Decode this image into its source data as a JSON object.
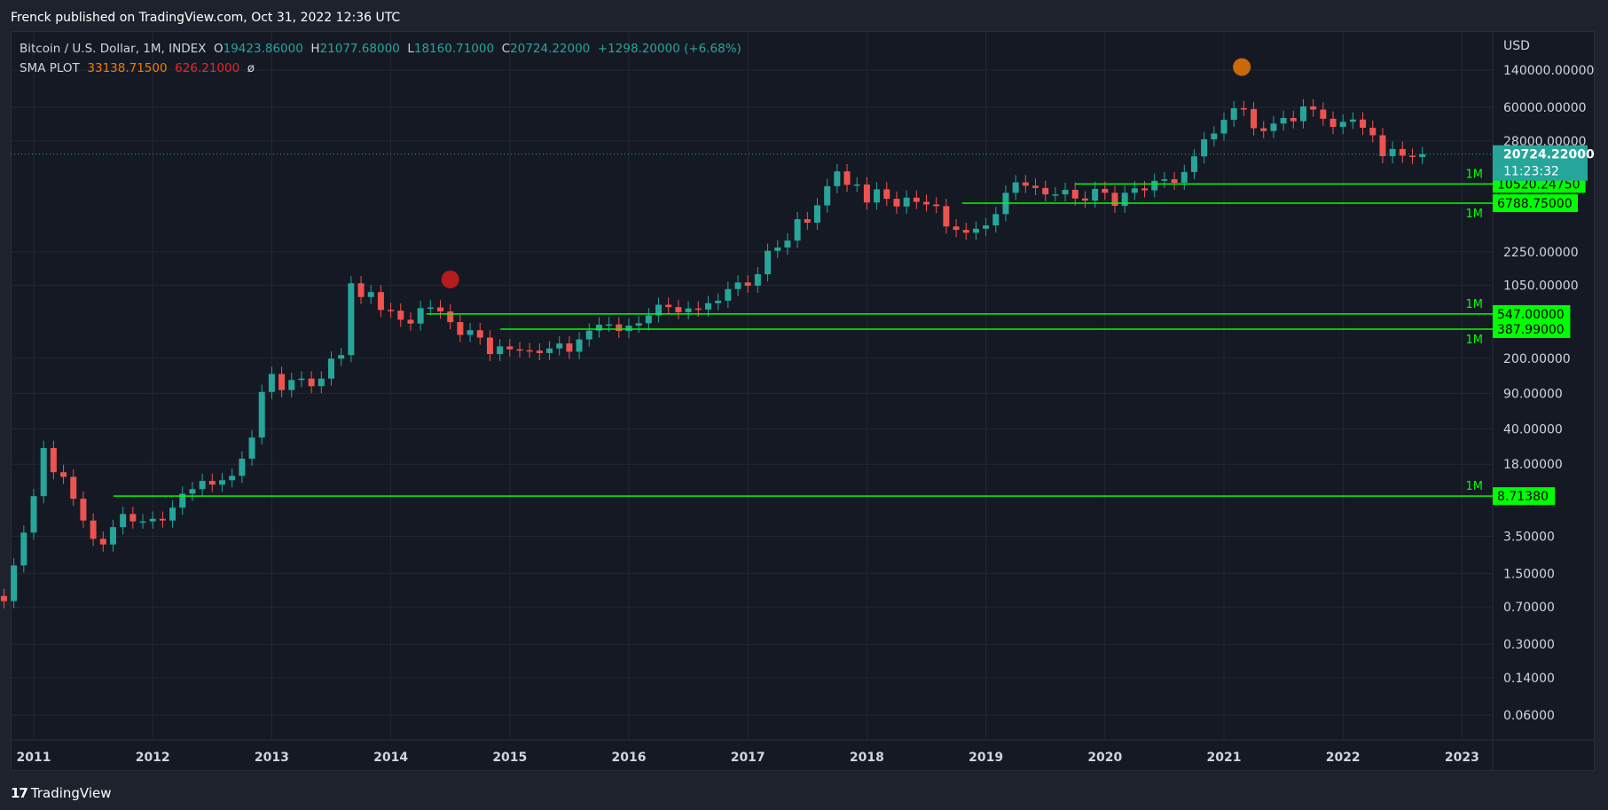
{
  "header": {
    "publisher_line": "Frenck published on TradingView.com, Oct 31, 2022 12:36 UTC"
  },
  "legend": {
    "symbol": "Bitcoin / U.S. Dollar, 1M, INDEX",
    "open_key": "O",
    "open": "19423.86000",
    "high_key": "H",
    "high": "21077.68000",
    "low_key": "L",
    "low": "18160.71000",
    "close_key": "C",
    "close": "20724.22000",
    "change": "+1298.20000 (+6.68%)",
    "sma_label": "SMA PLOT",
    "sma_value1": "33138.71500",
    "sma_value2": "626.21000",
    "sma_value3": "ø"
  },
  "footer": {
    "logo_text": "TradingView"
  },
  "colors": {
    "up": "#26a69a",
    "down": "#ef5350",
    "level_line": "#00ff00",
    "marker_red": "#b71c1c",
    "marker_orange": "#c96a0a",
    "price_badge": "#26a69a"
  },
  "chart_data": {
    "type": "candlestick",
    "timeframe": "1M",
    "y_scale": "log",
    "y_axis_unit": "USD",
    "y_ticks": [
      "140000.00000",
      "60000.00000",
      "28000.00000",
      "2250.00000",
      "1050.00000",
      "200.00000",
      "90.00000",
      "40.00000",
      "18.00000",
      "3.50000",
      "1.50000",
      "0.70000",
      "0.30000",
      "0.14000",
      "0.06000"
    ],
    "x_ticks": [
      "2011",
      "2012",
      "2013",
      "2014",
      "2015",
      "2016",
      "2017",
      "2018",
      "2019",
      "2020",
      "2021",
      "2022",
      "2023"
    ],
    "current_price": {
      "value": "20724.22000",
      "countdown": "11:23:32"
    },
    "levels": [
      {
        "value": 10520.2475,
        "label": "10520.24750",
        "tag": "1M",
        "start": 2019.75
      },
      {
        "value": 6788.75,
        "label": "6788.75000",
        "tag": "1M",
        "start": 2018.8
      },
      {
        "value": 547.0,
        "label": "547.00000",
        "tag": "1M",
        "start": 2014.3
      },
      {
        "value": 387.99,
        "label": "387.99000",
        "tag": "1M",
        "start": 2014.92
      },
      {
        "value": 8.7138,
        "label": "8.71380",
        "tag": "1M",
        "start": 2011.67
      }
    ],
    "markers": [
      {
        "t": 2014.5,
        "value": 1200,
        "color": "red"
      },
      {
        "t": 2021.15,
        "value": 150000,
        "color": "orange"
      }
    ],
    "candles_close": [
      0.3,
      0.9,
      0.8,
      1.8,
      3.8,
      8.7,
      26,
      15,
      13.5,
      8.2,
      5,
      3.3,
      2.9,
      4.3,
      5.8,
      4.9,
      4.9,
      5.2,
      5,
      6.7,
      9.2,
      10.2,
      12.3,
      11.3,
      12.5,
      13.8,
      20.4,
      33,
      93,
      140,
      97,
      122,
      126,
      106,
      126,
      198,
      215,
      1100,
      805,
      900,
      600,
      590,
      480,
      440,
      625,
      635,
      580,
      455,
      340,
      378,
      320,
      220,
      262,
      245,
      240,
      238,
      225,
      250,
      280,
      232,
      307,
      375,
      429,
      432,
      372,
      420,
      443,
      530,
      675,
      640,
      570,
      620,
      605,
      700,
      740,
      965,
      1120,
      1040,
      1350,
      2300,
      2480,
      2900,
      4720,
      4360,
      6460,
      10000,
      14000,
      10300,
      10400,
      6900,
      9300,
      7500,
      6300,
      7700,
      7000,
      6600,
      6350,
      4000,
      3700,
      3470,
      3800,
      4100,
      5300,
      8600,
      10900,
      10100,
      9600,
      8300,
      8300,
      9200,
      7550,
      7200,
      9400,
      8600,
      6400,
      8600,
      9500,
      9100,
      11300,
      11700,
      10800,
      13800,
      19700,
      29000,
      33100,
      45200,
      58800,
      57700,
      37300,
      35000,
      41500,
      47100,
      43800,
      61300,
      57000,
      46300,
      38500,
      43200,
      45500,
      37700,
      31800,
      19800,
      23300,
      20000,
      19400,
      20700
    ],
    "candles_open": [
      0.25,
      0.3,
      0.9,
      0.8,
      1.8,
      3.8,
      8.7,
      26,
      15,
      13.5,
      8.2,
      5,
      3.3,
      2.9,
      4.3,
      5.8,
      4.9,
      4.9,
      5.2,
      5,
      6.7,
      9.2,
      10.2,
      12.3,
      11.3,
      12.5,
      13.8,
      20.4,
      33,
      93,
      140,
      97,
      122,
      126,
      106,
      126,
      198,
      215,
      1100,
      805,
      900,
      600,
      590,
      480,
      440,
      625,
      635,
      580,
      455,
      340,
      378,
      320,
      220,
      262,
      245,
      240,
      238,
      225,
      250,
      280,
      232,
      307,
      375,
      429,
      432,
      372,
      420,
      443,
      530,
      675,
      640,
      570,
      620,
      605,
      700,
      740,
      965,
      1120,
      1040,
      1350,
      2300,
      2480,
      2900,
      4720,
      4360,
      6460,
      10000,
      14000,
      10300,
      10400,
      6900,
      9300,
      7500,
      6300,
      7700,
      7000,
      6600,
      6350,
      4000,
      3700,
      3470,
      3800,
      4100,
      5300,
      8600,
      10900,
      10100,
      9600,
      8300,
      8300,
      9200,
      7550,
      7200,
      9400,
      8600,
      6400,
      8600,
      9500,
      9100,
      11300,
      11700,
      10800,
      13800,
      19700,
      29000,
      33100,
      45200,
      58800,
      57700,
      37300,
      35000,
      41500,
      47100,
      43800,
      61300,
      57000,
      46300,
      38500,
      43200,
      45500,
      37700,
      31800,
      19800,
      23300,
      20000,
      19400
    ]
  }
}
